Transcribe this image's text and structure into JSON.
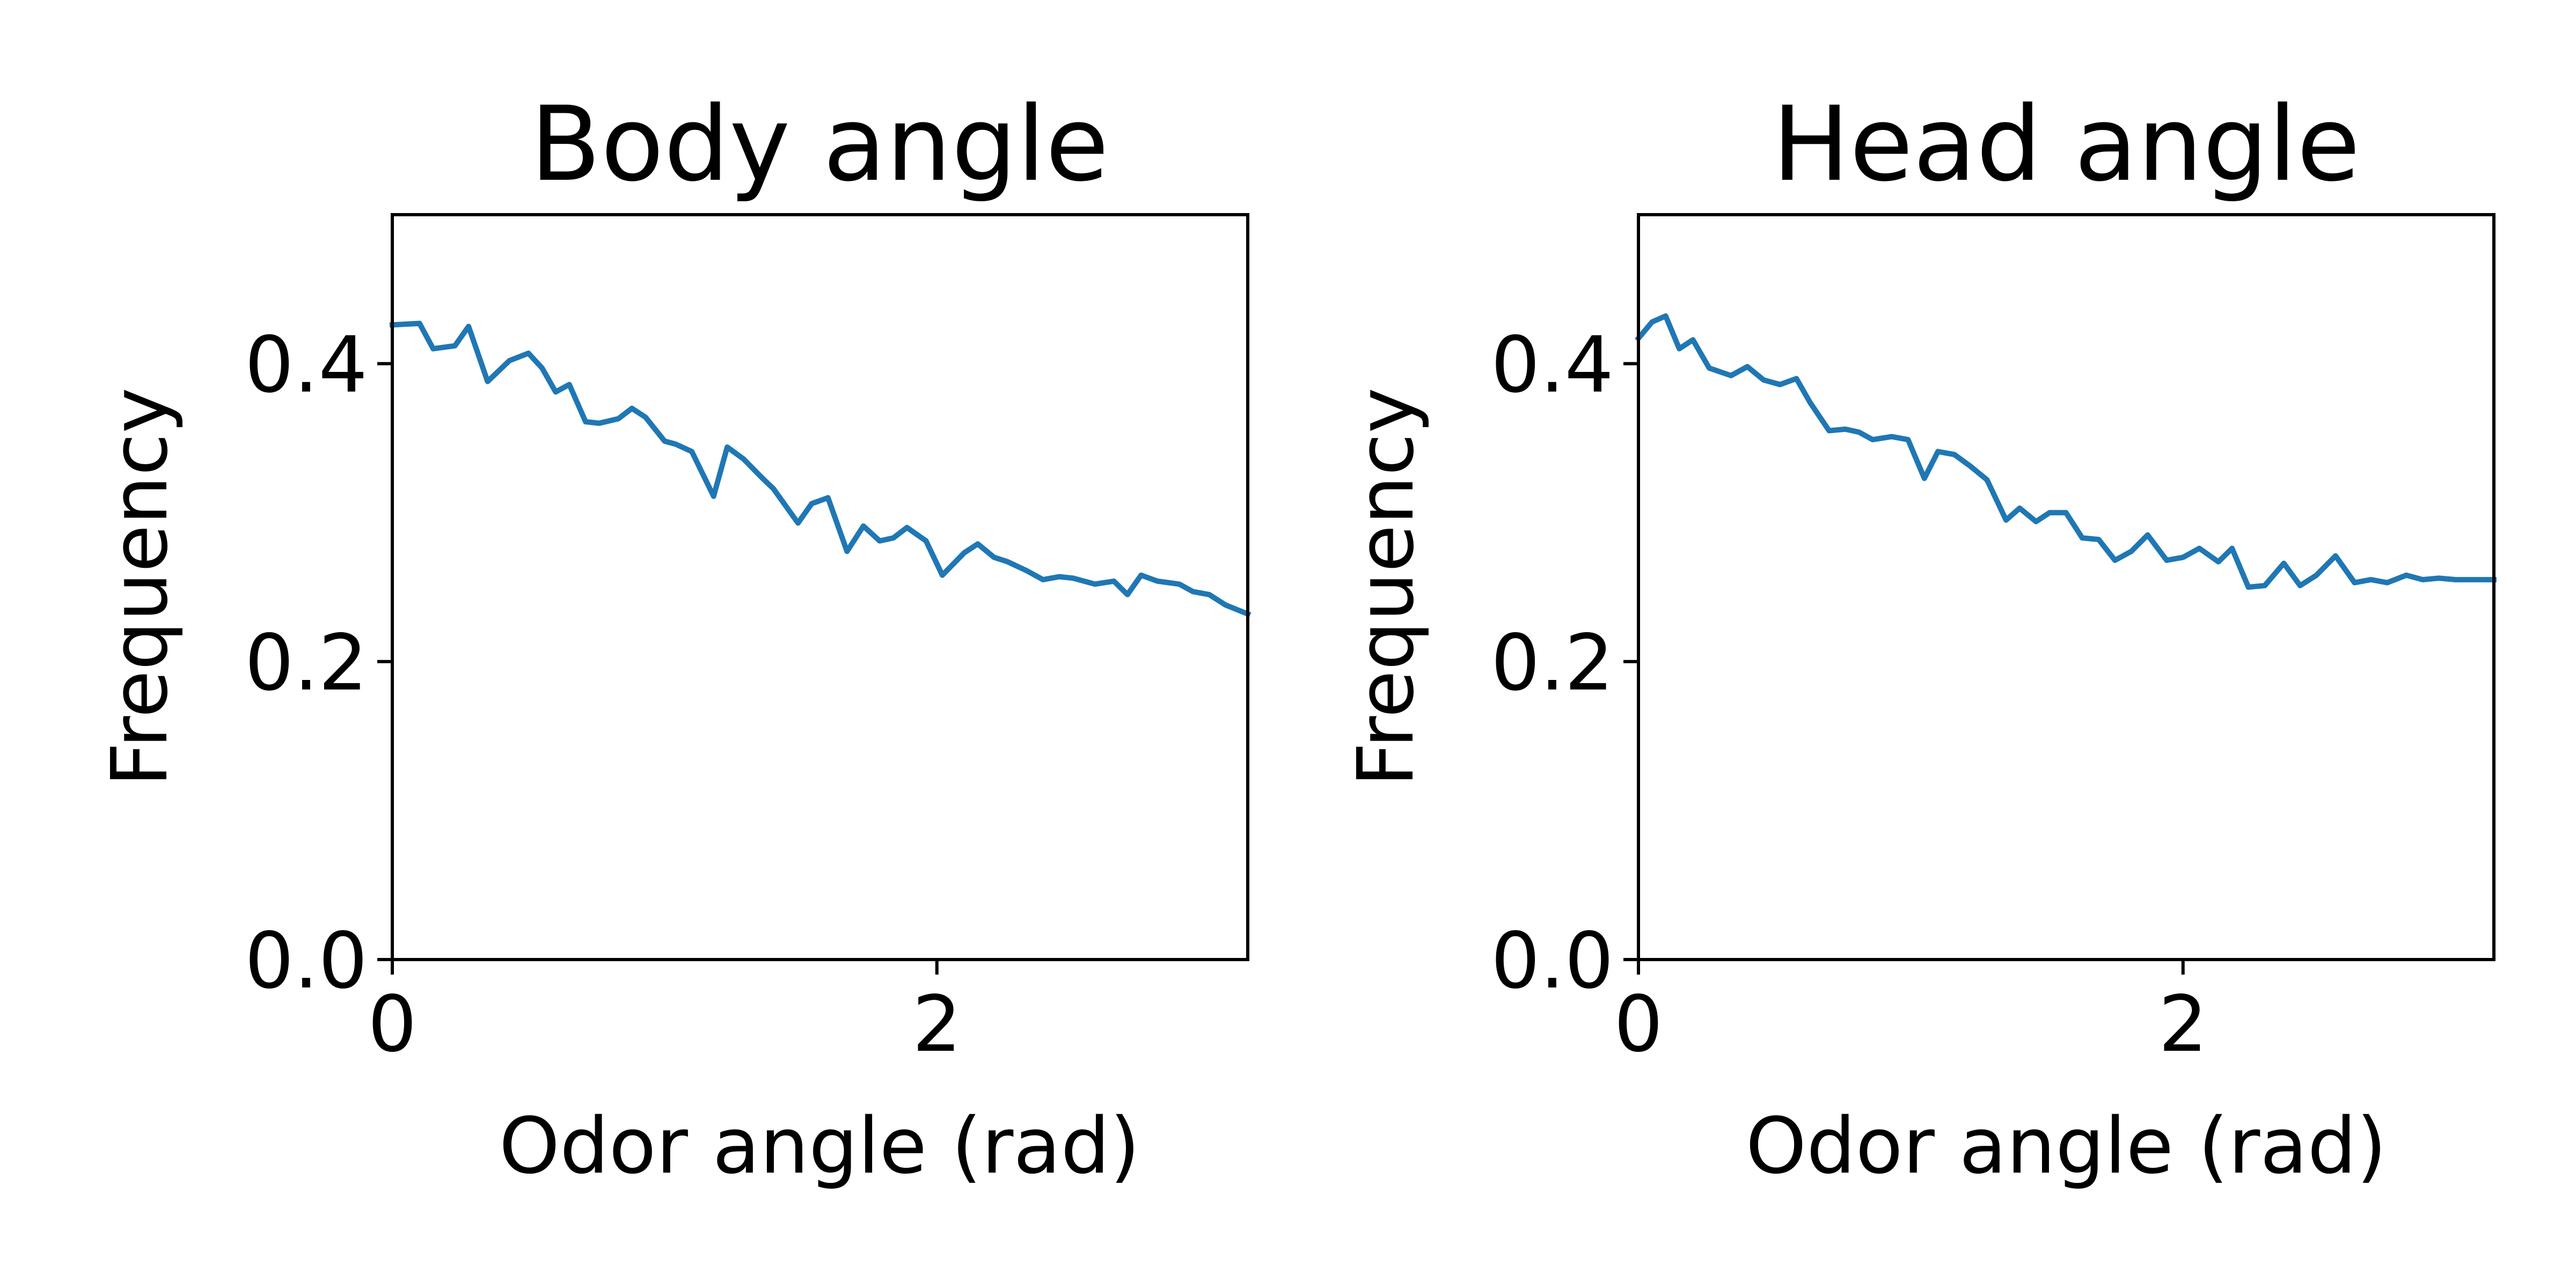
{
  "chart_data": [
    {
      "type": "line",
      "title": "Body angle",
      "xlabel": "Odor angle (rad)",
      "ylabel": "Frequency",
      "xlim": [
        0,
        3.1416
      ],
      "ylim": [
        0,
        0.5
      ],
      "xticks": [
        0,
        2
      ],
      "xtick_labels": [
        "0",
        "2"
      ],
      "yticks": [
        0,
        0.2,
        0.4
      ],
      "ytick_labels": [
        "0.0",
        "0.2",
        "0.4"
      ],
      "grid": false,
      "legend": "none",
      "color": "#1f77b4",
      "series": [
        {
          "x": [
            0.0,
            0.1,
            0.15,
            0.23,
            0.28,
            0.35,
            0.43,
            0.5,
            0.55,
            0.6,
            0.65,
            0.71,
            0.76,
            0.83,
            0.88,
            0.93,
            1.0,
            1.04,
            1.1,
            1.18,
            1.23,
            1.29,
            1.36,
            1.4,
            1.49,
            1.54,
            1.6,
            1.67,
            1.73,
            1.79,
            1.84,
            1.89,
            1.96,
            2.02,
            2.1,
            2.15,
            2.21,
            2.26,
            2.33,
            2.39,
            2.45,
            2.5,
            2.58,
            2.65,
            2.7,
            2.75,
            2.81,
            2.89,
            2.94,
            3.0,
            3.06,
            3.1416
          ],
          "y": [
            0.426,
            0.427,
            0.41,
            0.412,
            0.425,
            0.388,
            0.402,
            0.407,
            0.397,
            0.381,
            0.386,
            0.361,
            0.36,
            0.363,
            0.37,
            0.364,
            0.348,
            0.346,
            0.341,
            0.311,
            0.344,
            0.336,
            0.323,
            0.316,
            0.293,
            0.306,
            0.31,
            0.274,
            0.291,
            0.281,
            0.283,
            0.29,
            0.281,
            0.258,
            0.273,
            0.279,
            0.27,
            0.267,
            0.261,
            0.255,
            0.257,
            0.256,
            0.252,
            0.254,
            0.245,
            0.258,
            0.254,
            0.252,
            0.247,
            0.245,
            0.238,
            0.232
          ]
        }
      ]
    },
    {
      "type": "line",
      "title": "Head angle",
      "xlabel": "Odor angle (rad)",
      "ylabel": "Frequency",
      "xlim": [
        0,
        3.1416
      ],
      "ylim": [
        0,
        0.5
      ],
      "xticks": [
        0,
        2
      ],
      "xtick_labels": [
        "0",
        "2"
      ],
      "yticks": [
        0,
        0.2,
        0.4
      ],
      "ytick_labels": [
        "0.0",
        "0.2",
        "0.4"
      ],
      "grid": false,
      "legend": "none",
      "color": "#1f77b4",
      "series": [
        {
          "x": [
            0.0,
            0.05,
            0.1,
            0.15,
            0.2,
            0.26,
            0.34,
            0.4,
            0.46,
            0.52,
            0.58,
            0.63,
            0.7,
            0.76,
            0.81,
            0.86,
            0.93,
            0.99,
            1.05,
            1.1,
            1.16,
            1.22,
            1.28,
            1.35,
            1.4,
            1.46,
            1.51,
            1.57,
            1.63,
            1.69,
            1.75,
            1.81,
            1.87,
            1.94,
            2.0,
            2.06,
            2.13,
            2.18,
            2.24,
            2.3,
            2.37,
            2.43,
            2.49,
            2.56,
            2.63,
            2.69,
            2.75,
            2.82,
            2.88,
            2.94,
            3.0,
            3.05,
            3.1416
          ],
          "y": [
            0.417,
            0.428,
            0.432,
            0.41,
            0.416,
            0.397,
            0.392,
            0.398,
            0.389,
            0.386,
            0.39,
            0.374,
            0.355,
            0.356,
            0.354,
            0.349,
            0.351,
            0.349,
            0.323,
            0.341,
            0.339,
            0.331,
            0.322,
            0.295,
            0.303,
            0.294,
            0.3,
            0.3,
            0.283,
            0.282,
            0.268,
            0.274,
            0.285,
            0.268,
            0.27,
            0.276,
            0.267,
            0.276,
            0.25,
            0.251,
            0.266,
            0.251,
            0.258,
            0.271,
            0.253,
            0.255,
            0.253,
            0.258,
            0.255,
            0.256,
            0.255,
            0.255,
            0.255
          ]
        }
      ]
    }
  ]
}
